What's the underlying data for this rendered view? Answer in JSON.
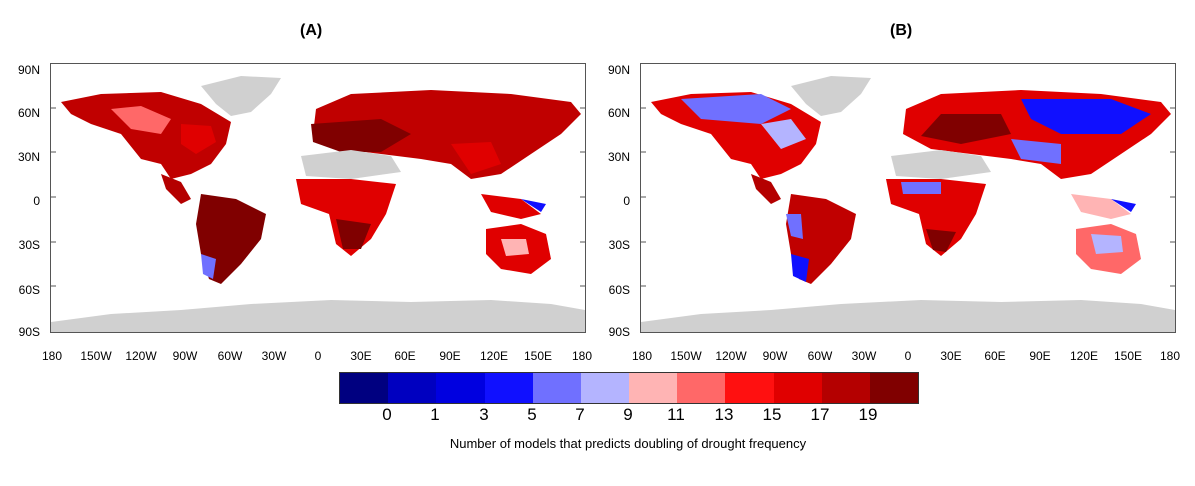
{
  "panels": [
    {
      "title": "(A)"
    },
    {
      "title": "(B)"
    }
  ],
  "lat_labels": [
    "90N",
    "60N",
    "30N",
    "0",
    "30S",
    "60S",
    "90S"
  ],
  "lon_labels": [
    "180",
    "150W",
    "120W",
    "90W",
    "60W",
    "30W",
    "0",
    "30E",
    "60E",
    "90E",
    "120E",
    "150E",
    "180"
  ],
  "colorbar": {
    "colors": [
      "#000080",
      "#0000c0",
      "#0000e0",
      "#1010ff",
      "#7070ff",
      "#b4b4ff",
      "#ffb4b4",
      "#ff6868",
      "#ff1010",
      "#e00000",
      "#b40000",
      "#800000"
    ],
    "tick_labels": [
      "0",
      "1",
      "3",
      "5",
      "7",
      "9",
      "11",
      "13",
      "15",
      "17",
      "19"
    ],
    "caption": "Number of models that predicts doubling of drought frequency"
  },
  "colors": {
    "land_no_data": "#d0d0d0",
    "frame": "#555555"
  }
}
